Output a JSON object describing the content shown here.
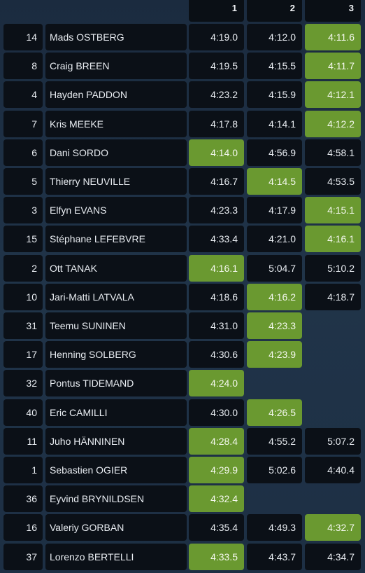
{
  "header": {
    "stages": [
      "1",
      "2",
      "3"
    ]
  },
  "colors": {
    "best_time": "#6a9930",
    "cell_bg": "#0b1017",
    "page_bg": "#1d2f44"
  },
  "rows": [
    {
      "number": "14",
      "driver": "Mads OSTBERG",
      "times": [
        "4:19.0",
        "4:12.0",
        "4:11.6"
      ],
      "best": 2
    },
    {
      "number": "8",
      "driver": "Craig BREEN",
      "times": [
        "4:19.5",
        "4:15.5",
        "4:11.7"
      ],
      "best": 2
    },
    {
      "number": "4",
      "driver": "Hayden PADDON",
      "times": [
        "4:23.2",
        "4:15.9",
        "4:12.1"
      ],
      "best": 2
    },
    {
      "number": "7",
      "driver": "Kris MEEKE",
      "times": [
        "4:17.8",
        "4:14.1",
        "4:12.2"
      ],
      "best": 2
    },
    {
      "number": "6",
      "driver": "Dani SORDO",
      "times": [
        "4:14.0",
        "4:56.9",
        "4:58.1"
      ],
      "best": 0
    },
    {
      "number": "5",
      "driver": "Thierry NEUVILLE",
      "times": [
        "4:16.7",
        "4:14.5",
        "4:53.5"
      ],
      "best": 1
    },
    {
      "number": "3",
      "driver": "Elfyn EVANS",
      "times": [
        "4:23.3",
        "4:17.9",
        "4:15.1"
      ],
      "best": 2
    },
    {
      "number": "15",
      "driver": "Stéphane LEFEBVRE",
      "times": [
        "4:33.4",
        "4:21.0",
        "4:16.1"
      ],
      "best": 2
    },
    {
      "number": "2",
      "driver": "Ott TANAK",
      "times": [
        "4:16.1",
        "5:04.7",
        "5:10.2"
      ],
      "best": 0
    },
    {
      "number": "10",
      "driver": "Jari-Matti LATVALA",
      "times": [
        "4:18.6",
        "4:16.2",
        "4:18.7"
      ],
      "best": 1
    },
    {
      "number": "31",
      "driver": "Teemu SUNINEN",
      "times": [
        "4:31.0",
        "4:23.3",
        ""
      ],
      "best": 1
    },
    {
      "number": "17",
      "driver": "Henning SOLBERG",
      "times": [
        "4:30.6",
        "4:23.9",
        ""
      ],
      "best": 1
    },
    {
      "number": "32",
      "driver": "Pontus TIDEMAND",
      "times": [
        "4:24.0",
        "",
        ""
      ],
      "best": 0
    },
    {
      "number": "40",
      "driver": "Eric CAMILLI",
      "times": [
        "4:30.0",
        "4:26.5",
        ""
      ],
      "best": 1
    },
    {
      "number": "11",
      "driver": "Juho HÄNNINEN",
      "times": [
        "4:28.4",
        "4:55.2",
        "5:07.2"
      ],
      "best": 0
    },
    {
      "number": "1",
      "driver": "Sebastien OGIER",
      "times": [
        "4:29.9",
        "5:02.6",
        "4:40.4"
      ],
      "best": 0
    },
    {
      "number": "36",
      "driver": "Eyvind BRYNILDSEN",
      "times": [
        "4:32.4",
        "",
        ""
      ],
      "best": 0
    },
    {
      "number": "16",
      "driver": "Valeriy GORBAN",
      "times": [
        "4:35.4",
        "4:49.3",
        "4:32.7"
      ],
      "best": 2
    },
    {
      "number": "37",
      "driver": "Lorenzo BERTELLI",
      "times": [
        "4:33.5",
        "4:43.7",
        "4:34.7"
      ],
      "best": 0
    }
  ]
}
